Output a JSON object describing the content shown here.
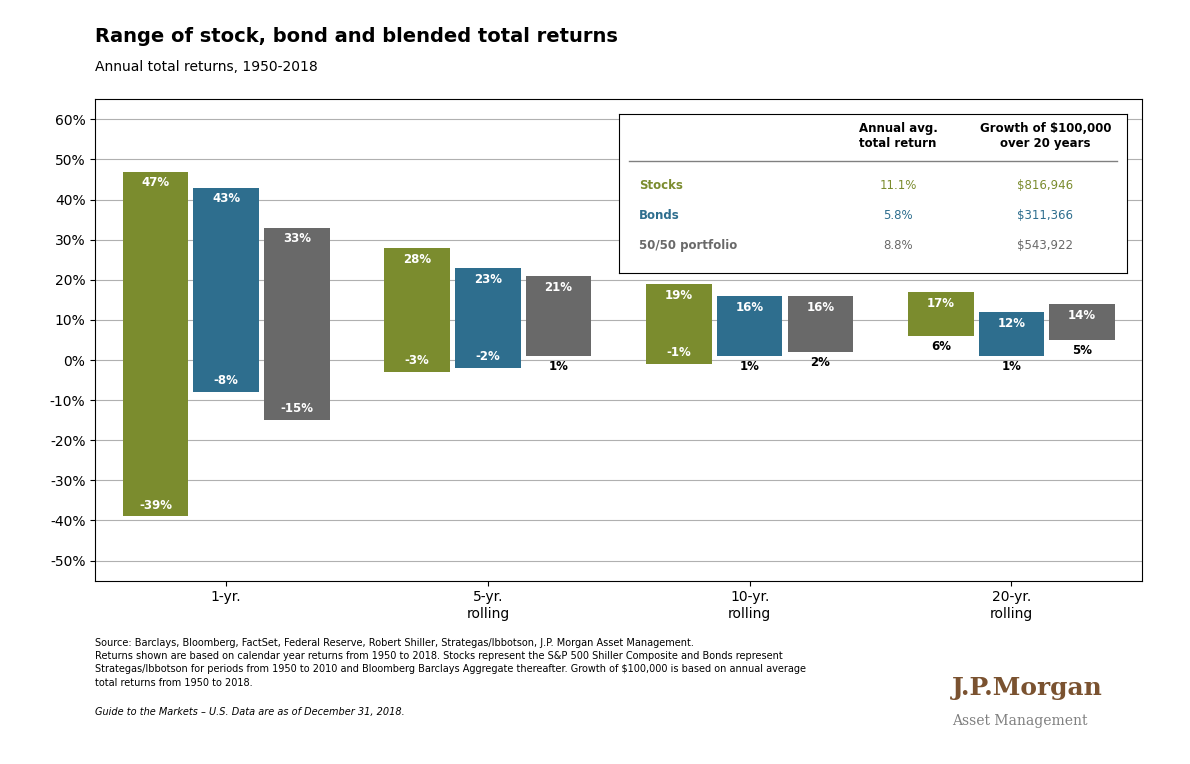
{
  "chart_data": {
    "type": "bar",
    "title": "Range of stock, bond and blended total returns",
    "subtitle": "Annual total returns, 1950-2018",
    "categories": [
      "1-yr.",
      "5-yr.\nrolling",
      "10-yr.\nrolling",
      "20-yr.\nrolling"
    ],
    "series": [
      {
        "name": "Stocks",
        "color": "#7b8c2e",
        "values": [
          [
            -39,
            47
          ],
          [
            -3,
            28
          ],
          [
            -1,
            19
          ],
          [
            6,
            17
          ]
        ],
        "value_labels": [
          [
            "-39%",
            "47%"
          ],
          [
            "-3%",
            "28%"
          ],
          [
            "-1%",
            "19%"
          ],
          [
            "6%",
            "17%"
          ]
        ]
      },
      {
        "name": "Bonds",
        "color": "#2e6e8e",
        "values": [
          [
            -8,
            43
          ],
          [
            -2,
            23
          ],
          [
            1,
            16
          ],
          [
            1,
            12
          ]
        ],
        "value_labels": [
          [
            "-8%",
            "43%"
          ],
          [
            "-2%",
            "23%"
          ],
          [
            "1%",
            "16%"
          ],
          [
            "1%",
            "12%"
          ]
        ]
      },
      {
        "name": "50/50 portfolio",
        "color": "#696969",
        "values": [
          [
            -15,
            33
          ],
          [
            1,
            21
          ],
          [
            2,
            16
          ],
          [
            5,
            14
          ]
        ],
        "value_labels": [
          [
            "-15%",
            "33%"
          ],
          [
            "1%",
            "21%"
          ],
          [
            "2%",
            "16%"
          ],
          [
            "5%",
            "14%"
          ]
        ]
      }
    ],
    "ylim": [
      -55,
      65
    ],
    "yticks": [
      {
        "value": -50,
        "label": "-50%"
      },
      {
        "value": -40,
        "label": "-40%"
      },
      {
        "value": -30,
        "label": "-30%"
      },
      {
        "value": -20,
        "label": "-20%"
      },
      {
        "value": -10,
        "label": "-10%"
      },
      {
        "value": 0,
        "label": "0%"
      },
      {
        "value": 10,
        "label": "10%"
      },
      {
        "value": 20,
        "label": "20%"
      },
      {
        "value": 30,
        "label": "30%"
      },
      {
        "value": 40,
        "label": "40%"
      },
      {
        "value": 50,
        "label": "50%"
      },
      {
        "value": 60,
        "label": "60%"
      }
    ],
    "grid": true,
    "data_labels": true,
    "table": {
      "columns": [
        "Annual avg.\ntotal return",
        "Growth of $100,000\nover 20 years"
      ],
      "rows": [
        [
          "Stocks",
          "11.1%",
          "$816,946"
        ],
        [
          "Bonds",
          "5.8%",
          "$311,366"
        ],
        [
          "50/50 portfolio",
          "8.8%",
          "$543,922"
        ]
      ]
    },
    "notes": [
      "Source: Barclays, Bloomberg, FactSet, Federal Reserve, Robert Shiller, Strategas/Ibbotson, J.P. Morgan Asset Management.\nReturns shown are based on calendar year returns from 1950 to 2018. Stocks represent the S&P 500 Shiller Composite and Bonds represent\nStrategas/Ibbotson for periods from 1950 to 2010 and Bloomberg Barclays Aggregate thereafter. Growth of $100,000 is based on annual average\ntotal returns from 1950 to 2018.",
      "Guide to the Markets – U.S. Data are as of December 31, 2018."
    ],
    "brand": [
      "J.P.Morgan",
      "Asset Management"
    ]
  }
}
